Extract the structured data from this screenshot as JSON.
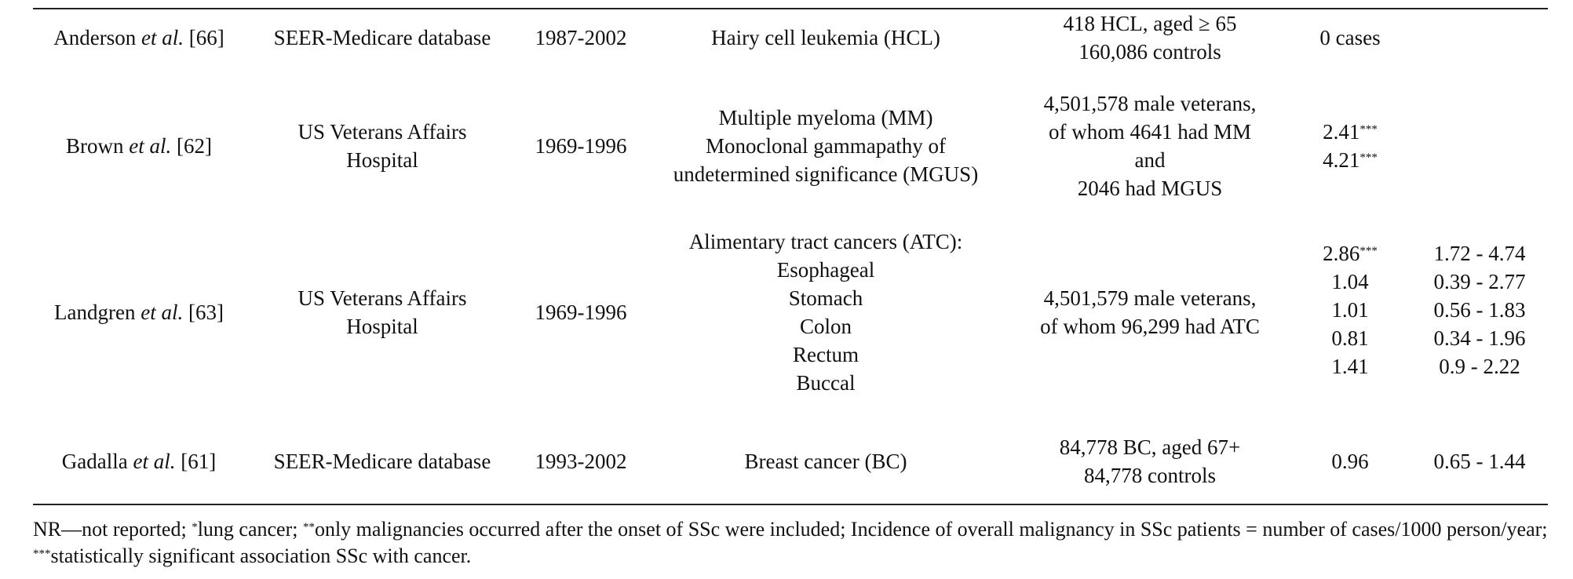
{
  "rows": [
    {
      "author": {
        "name": "Anderson",
        "etal": "et al.",
        "ref": "[66]"
      },
      "source": [
        "SEER-Medicare database"
      ],
      "period": "1987-2002",
      "cancer": [
        "Hairy cell leukemia (HCL)"
      ],
      "population": [
        "418 HCL, aged ≥ 65",
        "160,086 controls"
      ],
      "risk": [
        {
          "value": "0 cases",
          "sup": ""
        }
      ],
      "ci": []
    },
    {
      "author": {
        "name": "Brown",
        "etal": "et al.",
        "ref": "[62]"
      },
      "source": [
        "US Veterans Affairs",
        "Hospital"
      ],
      "period": "1969-1996",
      "cancer": [
        "Multiple myeloma (MM)",
        "Monoclonal gammapathy of",
        "undetermined significance (MGUS)"
      ],
      "population": [
        "4,501,578 male veterans,",
        "of whom 4641 had MM",
        "and",
        "2046 had MGUS"
      ],
      "risk": [
        {
          "value": "2.41",
          "sup": "***"
        },
        {
          "value": "4.21",
          "sup": "***"
        }
      ],
      "ci": []
    },
    {
      "author": {
        "name": "Landgren",
        "etal": "et al.",
        "ref": "[63]"
      },
      "source": [
        "US Veterans Affairs",
        "Hospital"
      ],
      "period": "1969-1996",
      "cancer": [
        "Alimentary tract cancers (ATC):",
        "Esophageal",
        "Stomach",
        "Colon",
        "Rectum",
        "Buccal"
      ],
      "population": [
        "4,501,579 male veterans,",
        "of whom 96,299 had ATC"
      ],
      "risk": [
        {
          "value": "2.86",
          "sup": "***"
        },
        {
          "value": "1.04",
          "sup": ""
        },
        {
          "value": "1.01",
          "sup": ""
        },
        {
          "value": "0.81",
          "sup": ""
        },
        {
          "value": "1.41",
          "sup": ""
        }
      ],
      "ci": [
        "1.72 - 4.74",
        "0.39 - 2.77",
        "0.56 - 1.83",
        "0.34 - 1.96",
        "0.9 - 2.22"
      ]
    },
    {
      "author": {
        "name": "Gadalla",
        "etal": "et al.",
        "ref": "[61]"
      },
      "source": [
        "SEER-Medicare database"
      ],
      "period": "1993-2002",
      "cancer": [
        "Breast cancer (BC)"
      ],
      "population": [
        "84,778 BC, aged 67+",
        "84,778 controls"
      ],
      "risk": [
        {
          "value": "0.96",
          "sup": ""
        }
      ],
      "ci": [
        "0.65 - 1.44"
      ]
    }
  ],
  "footnote": {
    "p1": "NR—not reported; ",
    "s1": "*",
    "p2": "lung cancer; ",
    "s2": "**",
    "p3": "only malignancies occurred after the onset of SSc were included; Incidence of overall malignancy in SSc patients = number of cases/1000 person/year; ",
    "s3": "***",
    "p4": "statistically significant association SSc with cancer."
  }
}
